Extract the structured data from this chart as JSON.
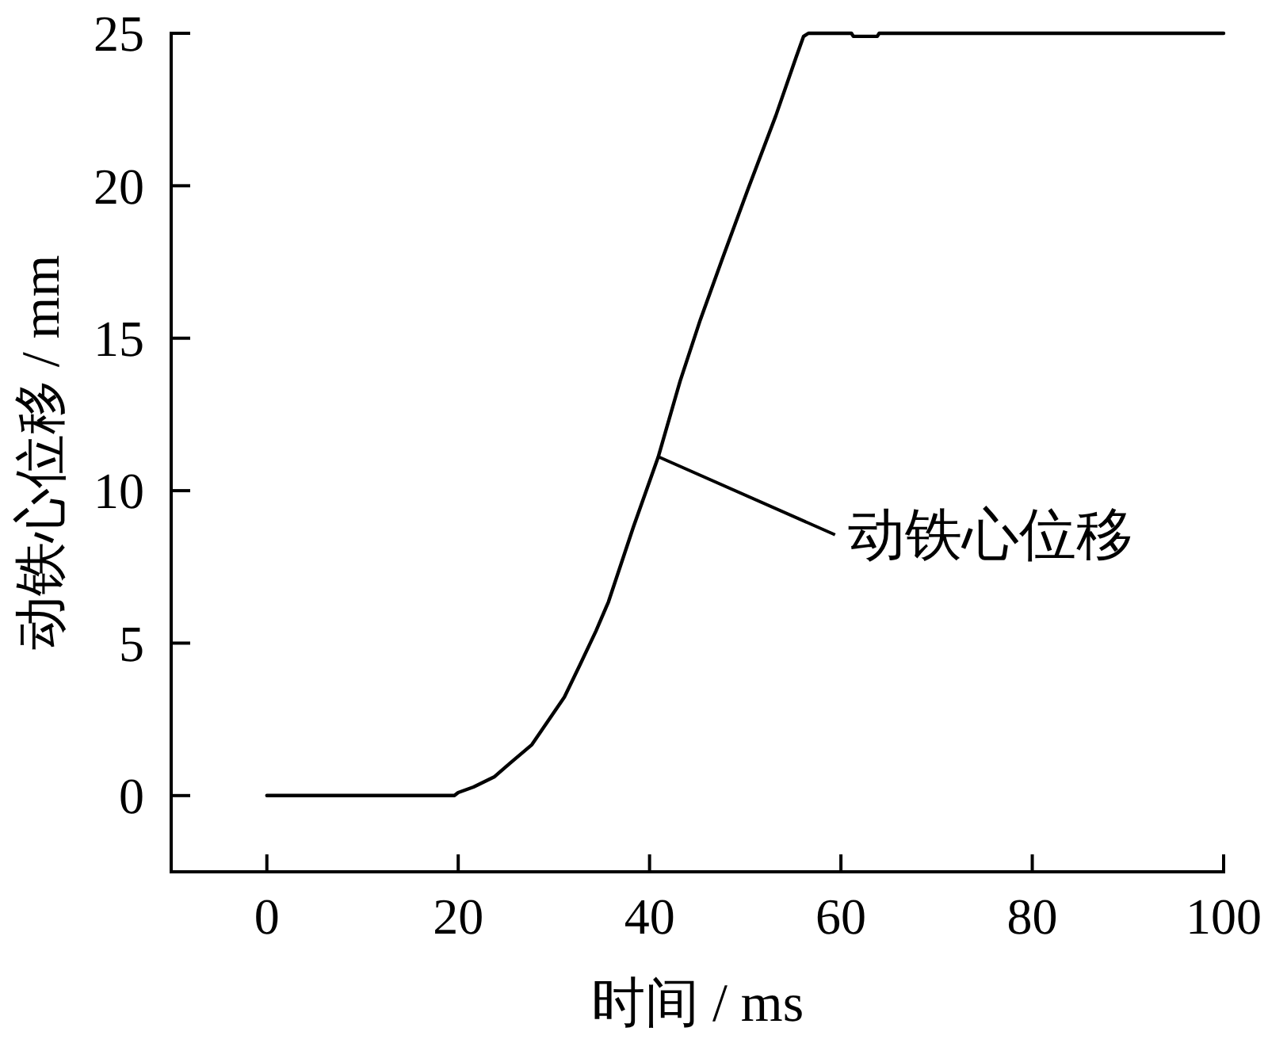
{
  "chart_data": {
    "type": "line",
    "xlabel": "时间 / ms",
    "ylabel": "动铁心位移 / mm",
    "x": [
      0,
      19.6,
      20,
      21.6,
      23.8,
      25.4,
      27.7,
      29.4,
      31.1,
      32.7,
      34.4,
      35.7,
      38.3,
      40.9,
      43.2,
      45.3,
      47.6,
      50.3,
      53.2,
      55.3,
      56.1,
      56.6,
      61.1,
      61.3,
      63.8,
      64,
      100
    ],
    "series": [
      {
        "color": "#000000",
        "values": [
          0,
          0,
          0.1,
          0.28,
          0.62,
          1.06,
          1.67,
          2.45,
          3.23,
          4.27,
          5.4,
          6.35,
          8.8,
          11.1,
          13.6,
          15.6,
          17.6,
          19.9,
          22.3,
          24.2,
          24.9,
          25,
          25,
          24.9,
          24.9,
          25,
          25
        ]
      }
    ],
    "xlim": [
      -10,
      100
    ],
    "xticks": [
      0,
      20,
      40,
      60,
      80,
      100
    ],
    "ylim": [
      -2.5,
      25
    ],
    "yticks": [
      0,
      5,
      10,
      15,
      20,
      25
    ],
    "annotations": [
      {
        "text": "动铁心位移",
        "x": 41,
        "y": 11.1
      }
    ]
  }
}
